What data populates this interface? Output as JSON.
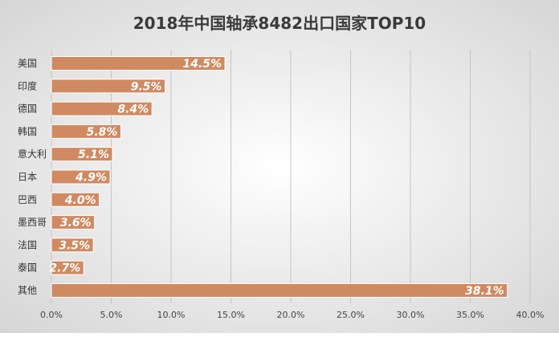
{
  "chart_data": {
    "type": "bar",
    "orientation": "horizontal",
    "title": "2018年中国轴承8482出口国家TOP10",
    "categories": [
      "美国",
      "印度",
      "德国",
      "韩国",
      "意大利",
      "日本",
      "巴西",
      "墨西哥",
      "法国",
      "泰国",
      "其他"
    ],
    "values": [
      14.5,
      9.5,
      8.4,
      5.8,
      5.1,
      4.9,
      4.0,
      3.6,
      3.5,
      2.7,
      38.1
    ],
    "data_labels": [
      "14.5%",
      "9.5%",
      "8.4%",
      "5.8%",
      "5.1%",
      "4.9%",
      "4.0%",
      "3.6%",
      "3.5%",
      "2.7%",
      "38.1%"
    ],
    "xlim": [
      0,
      40
    ],
    "x_ticks": [
      0,
      5,
      10,
      15,
      20,
      25,
      30,
      35,
      40
    ],
    "x_tick_labels": [
      "0.0%",
      "5.0%",
      "10.0%",
      "15.0%",
      "20.0%",
      "25.0%",
      "30.0%",
      "35.0%",
      "40.0%"
    ],
    "xlabel": "",
    "ylabel": "",
    "grid": true,
    "legend": "none",
    "colors": {
      "bar": "#d08a62",
      "bar_border": "#ffffff",
      "grid": "#c4c4c4",
      "background_center": "#ffffff",
      "background_edge": "#d6d6d6"
    }
  }
}
